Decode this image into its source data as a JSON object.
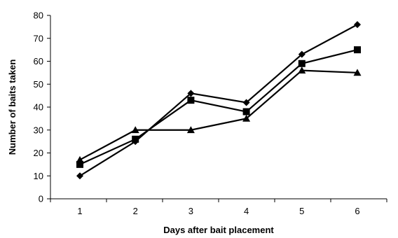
{
  "chart_data": {
    "type": "line",
    "x": [
      1,
      2,
      3,
      4,
      5,
      6
    ],
    "xlabel": "Days after bait placement",
    "ylabel": "Number of baits taken",
    "xticks": [
      "1",
      "2",
      "3",
      "4",
      "5",
      "6"
    ],
    "yticks": [
      "0",
      "10",
      "20",
      "30",
      "40",
      "50",
      "60",
      "70",
      "80"
    ],
    "ylim": [
      0,
      80
    ],
    "grid": false,
    "legend": "none",
    "series": [
      {
        "marker": "diamond",
        "values": [
          10,
          25,
          46,
          42,
          63,
          76
        ]
      },
      {
        "marker": "square",
        "values": [
          15,
          26,
          43,
          38,
          59,
          65
        ]
      },
      {
        "marker": "triangle",
        "values": [
          17,
          30,
          30,
          35,
          56,
          55
        ]
      }
    ],
    "line_color": "#000000"
  }
}
